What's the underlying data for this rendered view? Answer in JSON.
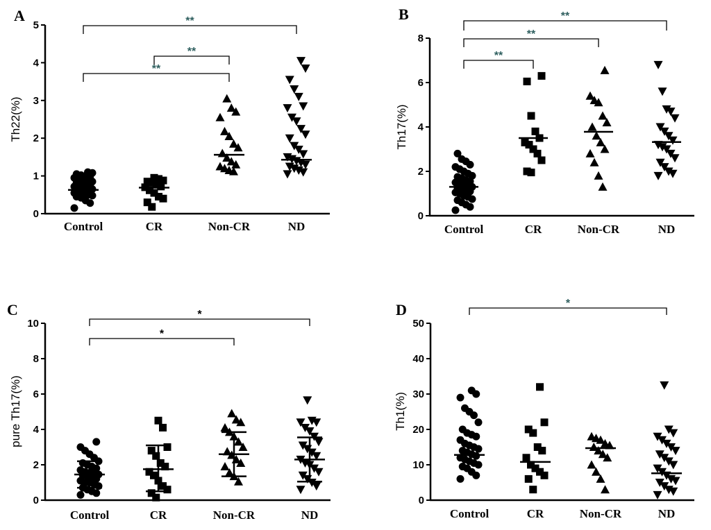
{
  "colors": {
    "ink": "#000000",
    "sig_teal": "#2f5f5f",
    "sig_black": "#000000"
  },
  "chart_data": [
    {
      "type": "scatter",
      "panel": "A",
      "ylabel": "Th22(%)",
      "categories": [
        "Control",
        "CR",
        "Non-CR",
        "ND"
      ],
      "ylim": [
        0,
        5
      ],
      "yticks": [
        "0",
        "1",
        "2",
        "3",
        "4",
        "5"
      ],
      "tick_values": [
        0,
        1,
        2,
        3,
        4,
        5
      ],
      "markers": [
        "circle",
        "square",
        "triangle-up",
        "triangle-down"
      ],
      "means": [
        0.63,
        0.69,
        1.56,
        1.43
      ],
      "points": [
        [
          0.15,
          0.28,
          0.35,
          0.42,
          0.45,
          0.48,
          0.5,
          0.52,
          0.55,
          0.55,
          0.58,
          0.6,
          0.62,
          0.62,
          0.65,
          0.65,
          0.68,
          0.7,
          0.72,
          0.75,
          0.78,
          0.8,
          0.82,
          0.85,
          0.88,
          0.9,
          0.92,
          0.95,
          0.98,
          1.0,
          1.02,
          1.05,
          1.08,
          1.1
        ],
        [
          0.18,
          0.3,
          0.4,
          0.45,
          0.55,
          0.62,
          0.7,
          0.72,
          0.78,
          0.82,
          0.85,
          0.88,
          0.92,
          0.95
        ],
        [
          1.12,
          1.15,
          1.2,
          1.25,
          1.3,
          1.38,
          1.48,
          1.6,
          1.75,
          1.85,
          2.05,
          2.18,
          2.55,
          2.7,
          2.8,
          3.05
        ],
        [
          1.05,
          1.1,
          1.15,
          1.2,
          1.25,
          1.3,
          1.35,
          1.4,
          1.45,
          1.5,
          1.58,
          1.7,
          1.8,
          2.0,
          2.1,
          2.25,
          2.45,
          2.55,
          2.8,
          2.85,
          3.1,
          3.3,
          3.55,
          3.85,
          4.05
        ]
      ],
      "comparisons": [
        {
          "from": "Control",
          "to": "ND",
          "label": "**"
        },
        {
          "from": "CR",
          "to": "Non-CR",
          "label": "**"
        },
        {
          "from": "Control",
          "to": "Non-CR",
          "label": "**"
        }
      ]
    },
    {
      "type": "scatter",
      "panel": "B",
      "ylabel": "Th17(%)",
      "categories": [
        "Control",
        "CR",
        "Non-CR",
        "ND"
      ],
      "ylim": [
        0,
        8
      ],
      "yticks": [
        "0",
        "2",
        "4",
        "6",
        "8"
      ],
      "tick_values": [
        0,
        2,
        4,
        6,
        8
      ],
      "markers": [
        "circle",
        "square",
        "triangle-up",
        "triangle-down"
      ],
      "means": [
        1.3,
        3.5,
        3.78,
        3.32
      ],
      "points": [
        [
          0.25,
          0.4,
          0.5,
          0.6,
          0.7,
          0.75,
          0.85,
          0.9,
          1.0,
          1.05,
          1.1,
          1.15,
          1.2,
          1.25,
          1.3,
          1.35,
          1.4,
          1.45,
          1.5,
          1.55,
          1.6,
          1.7,
          1.75,
          1.8,
          1.9,
          2.0,
          2.1,
          2.2,
          2.3,
          2.45,
          2.55,
          2.8
        ],
        [
          1.95,
          2.0,
          2.5,
          2.8,
          3.0,
          3.2,
          3.3,
          3.5,
          3.8,
          4.5,
          6.05,
          6.3
        ],
        [
          1.3,
          1.8,
          2.4,
          2.8,
          3.0,
          3.3,
          3.6,
          4.0,
          4.2,
          4.5,
          5.1,
          5.2,
          5.4,
          6.55
        ],
        [
          1.8,
          1.9,
          2.0,
          2.2,
          2.4,
          2.6,
          2.8,
          3.0,
          3.1,
          3.2,
          3.4,
          3.6,
          3.8,
          4.0,
          4.4,
          4.7,
          4.8,
          5.6,
          6.8
        ]
      ],
      "comparisons": [
        {
          "from": "Control",
          "to": "ND",
          "label": "**"
        },
        {
          "from": "Control",
          "to": "Non-CR",
          "label": "**"
        },
        {
          "from": "Control",
          "to": "CR",
          "label": "**"
        }
      ]
    },
    {
      "type": "scatter",
      "panel": "C",
      "ylabel": "pure Th17(%)",
      "categories": [
        "Control",
        "CR",
        "Non-CR",
        "ND"
      ],
      "ylim": [
        0,
        10
      ],
      "yticks": [
        "0",
        "2",
        "4",
        "6",
        "8",
        "10"
      ],
      "tick_values": [
        0,
        2,
        4,
        6,
        8,
        10
      ],
      "markers": [
        "circle",
        "square",
        "triangle-up",
        "triangle-down"
      ],
      "means": [
        1.45,
        1.75,
        2.6,
        2.3
      ],
      "error": [
        [
          0.7,
          2.2
        ],
        [
          0.5,
          3.1
        ],
        [
          1.35,
          3.85
        ],
        [
          1.05,
          3.55
        ]
      ],
      "points": [
        [
          0.3,
          0.4,
          0.5,
          0.6,
          0.7,
          0.8,
          0.9,
          1.0,
          1.0,
          1.1,
          1.2,
          1.3,
          1.35,
          1.4,
          1.45,
          1.5,
          1.55,
          1.6,
          1.7,
          1.8,
          1.9,
          2.0,
          2.1,
          2.2,
          2.4,
          2.6,
          2.8,
          3.0,
          3.3
        ],
        [
          0.15,
          0.4,
          0.6,
          0.8,
          1.1,
          1.4,
          1.6,
          1.9,
          2.1,
          2.5,
          2.8,
          3.0,
          4.1,
          4.5
        ],
        [
          1.05,
          1.35,
          1.55,
          1.9,
          2.1,
          2.3,
          2.55,
          2.75,
          3.0,
          3.3,
          3.6,
          3.85,
          4.1,
          4.4,
          4.55,
          4.9
        ],
        [
          0.6,
          0.8,
          1.0,
          1.2,
          1.4,
          1.6,
          1.8,
          2.0,
          2.1,
          2.3,
          2.5,
          2.7,
          2.9,
          3.1,
          3.3,
          3.6,
          3.9,
          4.1,
          4.4,
          4.4,
          4.5,
          5.65
        ]
      ],
      "comparisons": [
        {
          "from": "Control",
          "to": "ND",
          "label": "*"
        },
        {
          "from": "Control",
          "to": "Non-CR",
          "label": "*"
        }
      ]
    },
    {
      "type": "scatter",
      "panel": "D",
      "ylabel": "Th1(%)",
      "categories": [
        "Control",
        "CR",
        "Non-CR",
        "ND"
      ],
      "ylim": [
        0,
        50
      ],
      "yticks": [
        "0",
        "10",
        "20",
        "30",
        "40",
        "50"
      ],
      "tick_values": [
        0,
        10,
        20,
        30,
        40,
        50
      ],
      "markers": [
        "circle",
        "square",
        "triangle-up",
        "triangle-down"
      ],
      "means": [
        12.8,
        10.8,
        14.7,
        7.6
      ],
      "points": [
        [
          6,
          7,
          8,
          9,
          9.5,
          10,
          10.5,
          11,
          11.5,
          12,
          12.5,
          13,
          13.5,
          14,
          14.5,
          15,
          15.5,
          16,
          17,
          18,
          18.5,
          19,
          20,
          22,
          24,
          25,
          26,
          29,
          30,
          31
        ],
        [
          3,
          6,
          7,
          8,
          9,
          10,
          12,
          14,
          15,
          19,
          20,
          22,
          32
        ],
        [
          3,
          6,
          8,
          10,
          12,
          13,
          14,
          15,
          15.5,
          16,
          17,
          17.5,
          18
        ],
        [
          1.5,
          2.5,
          3,
          4,
          5,
          5.5,
          6,
          7,
          8,
          9,
          10,
          11,
          12,
          13,
          14,
          15,
          16,
          17,
          18,
          19,
          20,
          32.5
        ]
      ],
      "comparisons": [
        {
          "from": "Control",
          "to": "ND",
          "label": "*"
        }
      ]
    }
  ]
}
